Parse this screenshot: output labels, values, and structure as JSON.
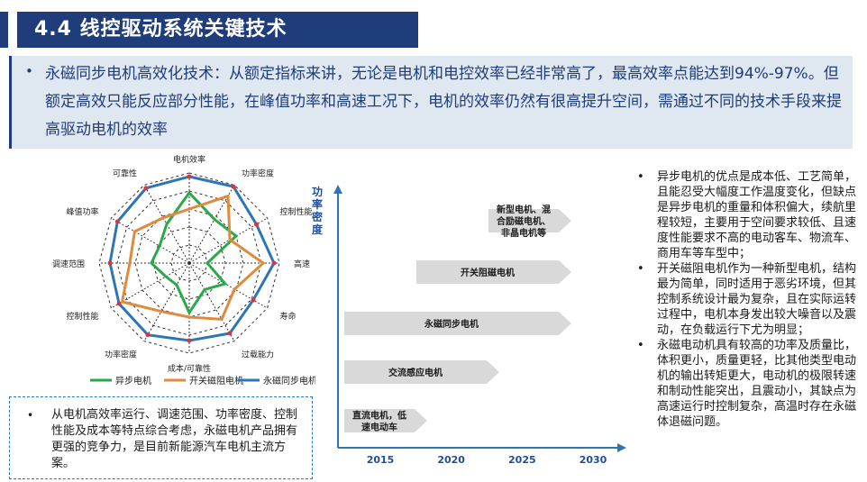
{
  "header": {
    "title": "4.4 线控驱动系统关键技术"
  },
  "summary": {
    "bullet": "•",
    "text": "永磁同步电机高效化技术：从额定指标来讲，无论是电机和电控效率已经非常高了，最高效率点能达到94%-97%。但额定高效只能反应部分性能，在峰值功率和高速工况下，电机的效率仍然有很高提升空间，需通过不同的技术手段来提高驱动电机的效率"
  },
  "radar": {
    "axes": [
      "电机效率",
      "功率密度",
      "控制性能",
      "高速",
      "寿命",
      "过载能力",
      "成本/可靠性",
      "功率密度",
      "控制性能",
      "调速范围",
      "峰值功率",
      "可靠性"
    ],
    "legend": [
      "异步电机",
      "开关磁阻电机",
      "永磁同步电机"
    ],
    "colors": {
      "induction": "#2ba84a",
      "srm": "#e08a3c",
      "pmsm": "#2e75b6",
      "axis": "#333333",
      "grid": "#333333"
    }
  },
  "chart_data": {
    "type": "area",
    "ylabel": "功率密度",
    "x_ticks": [
      "2015",
      "2020",
      "2025",
      "2030"
    ],
    "series": [
      {
        "name": "直流电机，低速电动车",
        "x_start": 2015,
        "x_end": 2020,
        "level": 1
      },
      {
        "name": "交流感应电机",
        "x_start": 2015,
        "x_end": 2025,
        "level": 2
      },
      {
        "name": "永磁同步电机",
        "x_start": 2015,
        "x_end": 2030,
        "level": 3
      },
      {
        "name": "开关阻磁电机",
        "x_start": 2020,
        "x_end": 2030,
        "level": 4
      },
      {
        "name": "新型电机、混合励磁电机、非晶电机等",
        "x_start": 2025,
        "x_end": 2030,
        "level": 5
      }
    ],
    "colors": {
      "arrow_fill": "#d9d9d9",
      "axis": "#2e75b6",
      "tick": "#1f4e9b"
    }
  },
  "notes_left": {
    "bullet": "•",
    "text": "从电机高效率运行、调速范围、功率密度、控制性能及成本等特点综合考虑，永磁电机产品拥有更强的竞争力，是目前新能源汽车电机主流方案。"
  },
  "notes_right": {
    "items": [
      {
        "bullet": "•",
        "text": "异步电机的优点是成本低、工艺简单，且能忍受大幅度工作温度变化，但缺点是异步电机的重量和体积偏大，续航里程较短，主要用于空间要求较低、且速度性能要求不高的电动客车、物流车、商用车等车型中；"
      },
      {
        "bullet": "•",
        "text": "开关磁阻电机作为一种新型电机，结构最为简单，同时适用于恶劣环境，但其控制系统设计最为复杂，且在实际运转过程中，电机本身发出较大噪音以及震动，在负载运行下尤为明显；"
      },
      {
        "bullet": "•",
        "text": "永磁电动机具有较高的功率及质量比，体积更小，质量更轻，比其他类型电动机的输出转矩更大，电动机的极限转速和制动性能突出，且震动小，其缺点为高速运行时控制复杂，高温时存在永磁体退磁问题。"
      }
    ]
  }
}
